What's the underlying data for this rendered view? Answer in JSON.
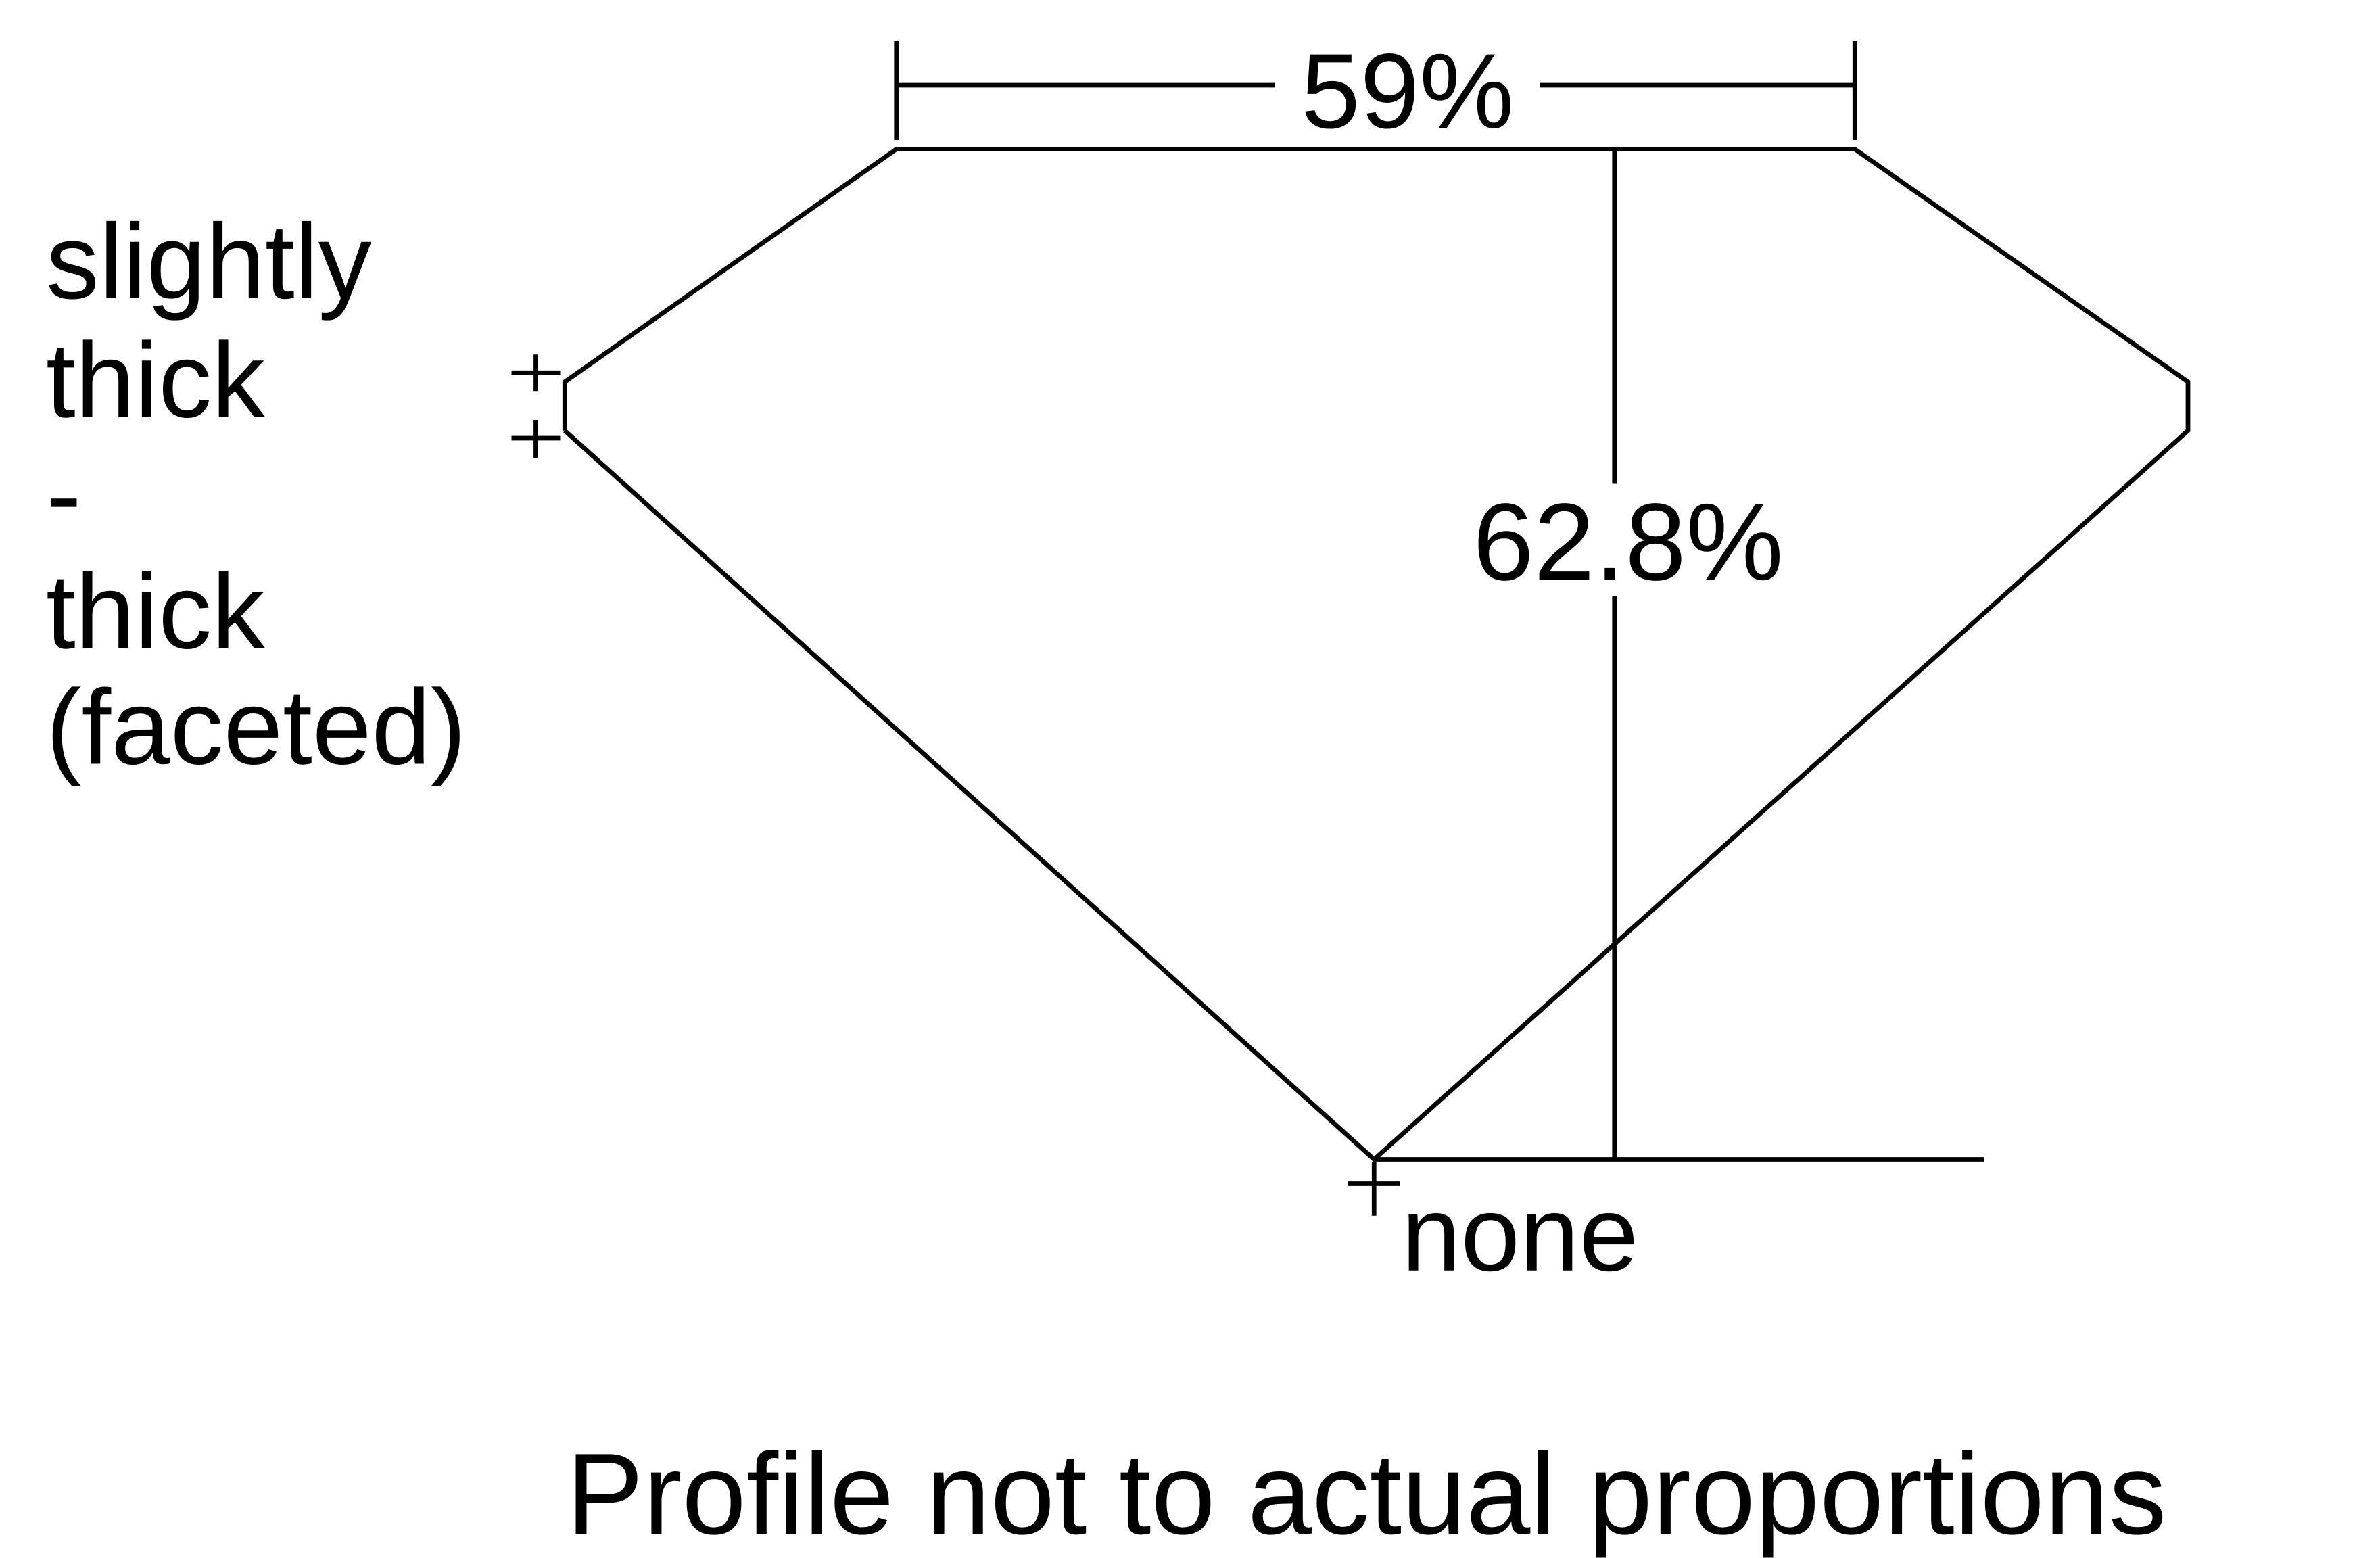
{
  "diagram": {
    "table_percent": "59%",
    "depth_percent": "62.8%",
    "girdle_label_lines": [
      "slightly",
      "thick",
      "-",
      "thick",
      "(faceted)"
    ],
    "culet_label": "none",
    "footnote": "Profile not to actual proportions",
    "line_color": "#000000",
    "background_color": "#ffffff"
  }
}
